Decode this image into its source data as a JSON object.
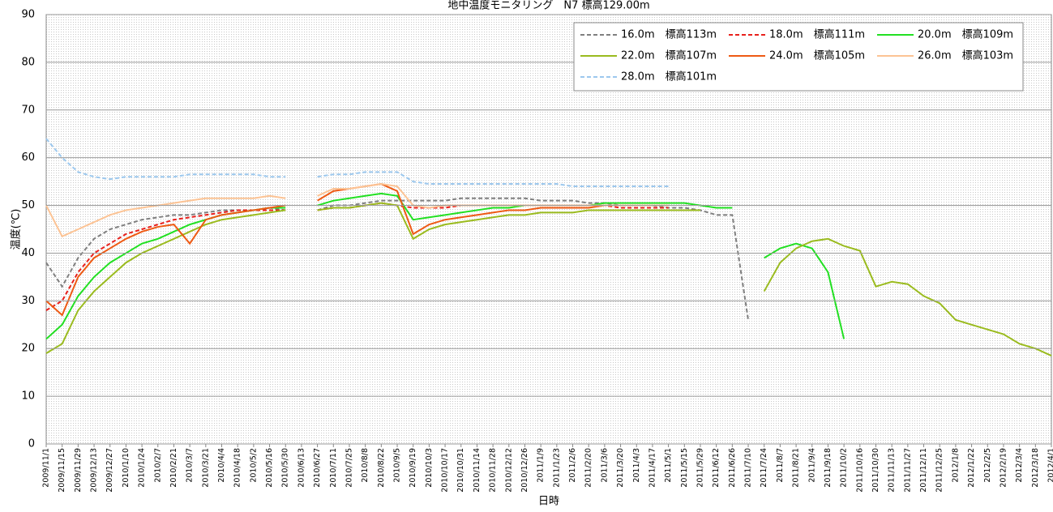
{
  "chart_data": {
    "type": "line",
    "title": "地中温度モニタリング　N7 標高129.00m",
    "x_label": "日時",
    "y_label": "温度(℃)",
    "categories": [
      "2009/11/1",
      "2009/11/15",
      "2009/11/29",
      "2009/12/13",
      "2009/12/27",
      "2010/1/10",
      "2010/1/24",
      "2010/2/7",
      "2010/2/21",
      "2010/3/7",
      "2010/3/21",
      "2010/4/4",
      "2010/4/18",
      "2010/5/2",
      "2010/5/16",
      "2010/5/30",
      "2010/6/13",
      "2010/6/27",
      "2010/7/11",
      "2010/7/25",
      "2010/8/8",
      "2010/8/22",
      "2010/9/5",
      "2010/9/19",
      "2010/10/3",
      "2010/10/17",
      "2010/10/31",
      "2010/11/14",
      "2010/11/28",
      "2010/12/12",
      "2010/12/26",
      "2011/1/9",
      "2011/1/23",
      "2011/2/6",
      "2011/2/20",
      "2011/3/6",
      "2011/3/20",
      "2011/4/3",
      "2011/4/17",
      "2011/5/1",
      "2011/5/15",
      "2011/5/29",
      "2011/6/12",
      "2011/6/26",
      "2011/7/10",
      "2011/7/24",
      "2011/8/7",
      "2011/8/21",
      "2011/9/4",
      "2011/9/18",
      "2011/10/2",
      "2011/10/16",
      "2011/10/30",
      "2011/11/13",
      "2011/11/27",
      "2011/12/11",
      "2011/12/25",
      "2012/1/8",
      "2012/1/22",
      "2012/2/5",
      "2012/2/19",
      "2012/3/4",
      "2012/3/18",
      "2012/4/1"
    ],
    "ylim": [
      0,
      90
    ],
    "yticks": [
      0,
      10,
      20,
      30,
      40,
      50,
      60,
      70,
      80,
      90
    ],
    "grid": true,
    "legend": "upper right",
    "series": [
      {
        "name": "16.0m　標高113m",
        "color": "#7f7f7f",
        "dashed": true,
        "values": [
          38,
          33,
          39,
          43,
          45,
          46,
          47,
          47.5,
          48,
          48,
          48.5,
          49,
          49,
          49,
          49.5,
          49,
          null,
          49,
          50,
          50,
          50.5,
          51,
          51,
          51,
          51,
          51,
          51.5,
          51.5,
          51.5,
          51.5,
          51.5,
          51,
          51,
          51,
          50.5,
          50.5,
          50,
          50,
          50,
          49.5,
          49.5,
          49,
          48,
          48,
          26,
          null,
          null,
          null,
          null,
          null,
          null,
          null,
          null,
          null,
          null,
          null,
          null,
          null,
          null,
          null,
          null,
          null,
          null,
          null
        ]
      },
      {
        "name": "18.0m　標高111m",
        "color": "#e8201c",
        "dashed": true,
        "values": [
          28,
          30,
          36,
          40,
          42,
          44,
          45,
          46,
          47,
          47.5,
          48,
          48.5,
          49,
          49,
          49,
          49,
          null,
          49,
          49.5,
          49.5,
          50,
          50.5,
          50,
          49.5,
          49.5,
          49.5,
          50,
          50,
          50,
          50,
          50,
          50,
          50,
          50,
          50,
          50,
          49.5,
          49.5,
          49.5,
          49.5,
          null,
          null,
          null,
          null,
          null,
          null,
          null,
          null,
          null,
          null,
          null,
          null,
          null,
          null,
          null,
          null,
          null,
          null,
          null,
          null,
          null,
          null,
          null,
          null
        ]
      },
      {
        "name": "20.0m　標高109m",
        "color": "#22e022",
        "dashed": false,
        "values": [
          22,
          25,
          31,
          35,
          38,
          40,
          42,
          43,
          44.5,
          46,
          47,
          48,
          48.5,
          49,
          49.5,
          49.5,
          null,
          50,
          51,
          51.5,
          52,
          52.5,
          52,
          47,
          47.5,
          48,
          48.5,
          49,
          49.5,
          49.5,
          50,
          50,
          50,
          50,
          50,
          50.5,
          50.5,
          50.5,
          50.5,
          50.5,
          50.5,
          50,
          49.5,
          49.5,
          null,
          39,
          41,
          42,
          41,
          36,
          22,
          null,
          null,
          null,
          null,
          null,
          null,
          null,
          null,
          null,
          null,
          null,
          null,
          null
        ]
      },
      {
        "name": "22.0m　標高107m",
        "color": "#9abb1e",
        "dashed": false,
        "values": [
          19,
          21,
          28,
          32,
          35,
          38,
          40,
          41.5,
          43,
          44.5,
          46,
          47,
          47.5,
          48,
          48.5,
          49,
          null,
          49,
          49.5,
          49.5,
          50,
          50.5,
          50,
          43,
          45,
          46,
          46.5,
          47,
          47.5,
          48,
          48,
          48.5,
          48.5,
          48.5,
          49,
          49,
          49,
          49,
          49,
          49,
          49,
          49,
          null,
          null,
          null,
          32,
          38,
          41,
          42.5,
          43,
          41.5,
          40.5,
          33,
          34,
          33.5,
          31,
          29.5,
          26,
          25,
          24,
          23,
          21,
          20,
          18.5
        ]
      },
      {
        "name": "24.0m　標高105m",
        "color": "#ee5a14",
        "dashed": false,
        "values": [
          30,
          27,
          35,
          39,
          41,
          43,
          44.5,
          45.5,
          46,
          42,
          47,
          48,
          48.5,
          49,
          49.5,
          50,
          null,
          51,
          53,
          53.5,
          54,
          54.5,
          53,
          44,
          46,
          47,
          47.5,
          48,
          48.5,
          49,
          49,
          49.5,
          49.5,
          49.5,
          49.5,
          50,
          50,
          50,
          50,
          50,
          null,
          null,
          null,
          null,
          null,
          null,
          null,
          null,
          null,
          null,
          null,
          null,
          null,
          null,
          null,
          null,
          null,
          null,
          null,
          null,
          null,
          null,
          null,
          null
        ]
      },
      {
        "name": "26.0m　標高103m",
        "color": "#fcc394",
        "dashed": false,
        "values": [
          50,
          43.5,
          45,
          46.5,
          48,
          49,
          49.5,
          50,
          50.5,
          51,
          51.5,
          51.5,
          51.5,
          51.5,
          52,
          51.5,
          null,
          52,
          53.5,
          53.5,
          54,
          54.5,
          54,
          50,
          49.5,
          50,
          50,
          50,
          50,
          50,
          50,
          50,
          50,
          50,
          50,
          50,
          50,
          50,
          50,
          50,
          null,
          null,
          null,
          null,
          null,
          null,
          null,
          null,
          null,
          null,
          null,
          null,
          null,
          null,
          null,
          null,
          null,
          null,
          null,
          null,
          null,
          null,
          null,
          null
        ]
      },
      {
        "name": "28.0m　標高101m",
        "color": "#9cc8ee",
        "dashed": true,
        "values": [
          64,
          60,
          57,
          56,
          55.5,
          56,
          56,
          56,
          56,
          56.5,
          56.5,
          56.5,
          56.5,
          56.5,
          56,
          56,
          null,
          56,
          56.5,
          56.5,
          57,
          57,
          57,
          55,
          54.5,
          54.5,
          54.5,
          54.5,
          54.5,
          54.5,
          54.5,
          54.5,
          54.5,
          54,
          54,
          54,
          54,
          54,
          54,
          54,
          null,
          null,
          null,
          null,
          null,
          null,
          null,
          null,
          null,
          null,
          null,
          null,
          null,
          null,
          null,
          null,
          null,
          null,
          null,
          null,
          null,
          null,
          null,
          null
        ]
      }
    ]
  }
}
